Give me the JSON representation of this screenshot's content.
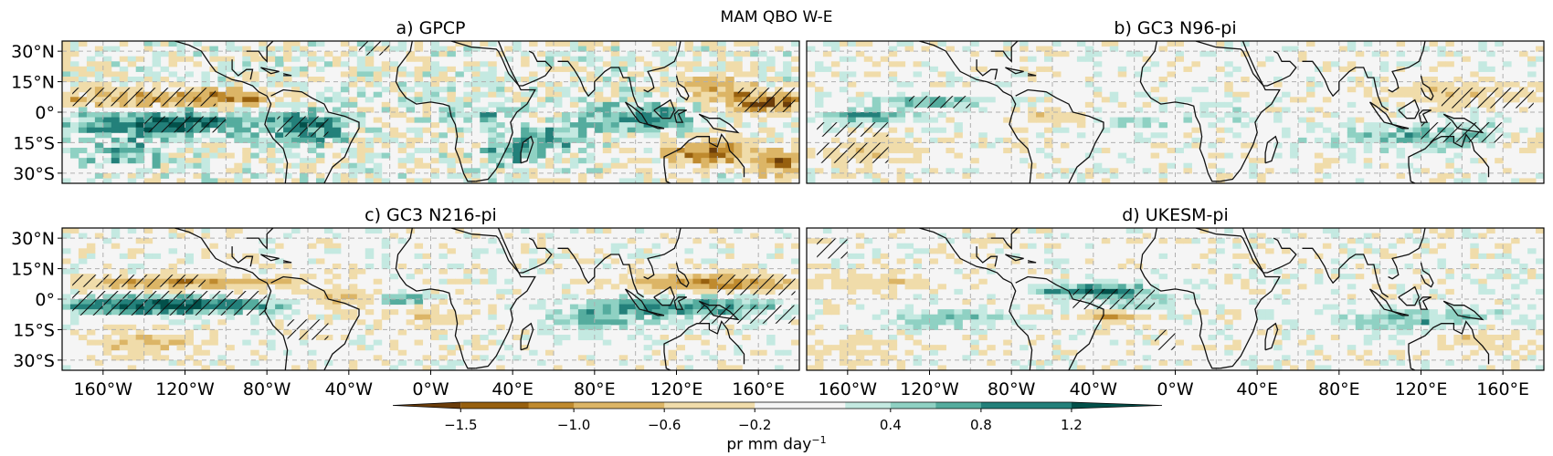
{
  "figure": {
    "title": "MAM QBO W-E"
  },
  "chart_data": [
    {
      "type": "heatmap",
      "title": "a) GPCP",
      "lat_ticks": [
        "30°N",
        "15°N",
        "0°",
        "15°S",
        "30°S"
      ],
      "lon_ticks": [],
      "lon_range": [
        -180,
        180
      ],
      "lat_range": [
        -35,
        35
      ],
      "grid": true
    },
    {
      "type": "heatmap",
      "title": "b) GC3 N96-pi",
      "lat_ticks": [],
      "lon_ticks": [],
      "lon_range": [
        -180,
        180
      ],
      "lat_range": [
        -35,
        35
      ],
      "grid": true
    },
    {
      "type": "heatmap",
      "title": "c) GC3 N216-pi",
      "lat_ticks": [
        "30°N",
        "15°N",
        "0°",
        "15°S",
        "30°S"
      ],
      "lon_ticks": [
        "160°W",
        "120°W",
        "80°W",
        "40°W",
        "0°W",
        "40°E",
        "80°E",
        "120°E",
        "160°E"
      ],
      "lon_range": [
        -180,
        180
      ],
      "lat_range": [
        -35,
        35
      ],
      "grid": true
    },
    {
      "type": "heatmap",
      "title": "d) UKESM-pi",
      "lat_ticks": [],
      "lon_ticks": [
        "160°W",
        "120°W",
        "80°W",
        "40°W",
        "0°W",
        "40°E",
        "80°E",
        "120°E",
        "160°E"
      ],
      "lon_range": [
        -180,
        180
      ],
      "lat_range": [
        -35,
        35
      ],
      "grid": true
    }
  ],
  "colorbar": {
    "label": "pr mm day",
    "label_exponent": "−1",
    "tick_labels": [
      "−1.5",
      "−1.0",
      "−0.6",
      "−0.2",
      "0.4",
      "0.8",
      "1.2"
    ],
    "tick_values": [
      -1.5,
      -1.0,
      -0.6,
      -0.2,
      0.4,
      0.8,
      1.2
    ],
    "range": [
      -1.8,
      1.6
    ],
    "colors": [
      "#6b3d0a",
      "#97600f",
      "#bf8a2e",
      "#dcb566",
      "#f0dcaa",
      "#f5f5f5",
      "#c4e9e1",
      "#8fd1c3",
      "#55ac9e",
      "#23807a",
      "#02504a"
    ],
    "boundaries": [
      -1.8,
      -1.5,
      -1.2,
      -1.0,
      -0.6,
      -0.2,
      0.2,
      0.4,
      0.6,
      0.8,
      1.2,
      1.6
    ]
  },
  "colors": {
    "dry": "#a86e20",
    "wet": "#1f8a7d",
    "neutral": "#f5f5f5",
    "grid": "#b0b0b0",
    "coast": "#111111"
  }
}
